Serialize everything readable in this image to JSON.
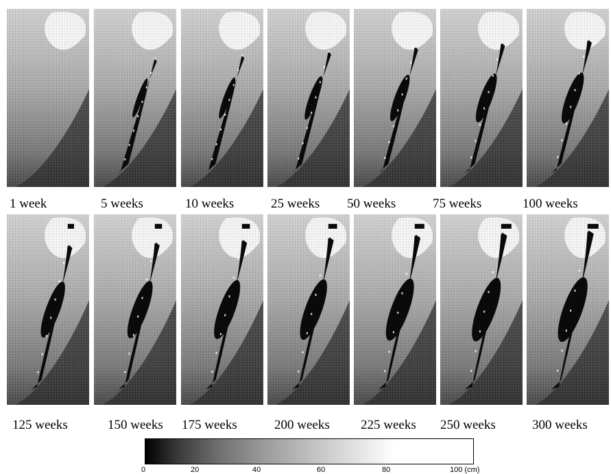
{
  "panels_row1": [
    {
      "label": "1 week",
      "stage": 0.0
    },
    {
      "label": "5 weeks",
      "stage": 0.12
    },
    {
      "label": "10 weeks",
      "stage": 0.2
    },
    {
      "label": "25 weeks",
      "stage": 0.3
    },
    {
      "label": "50 weeks",
      "stage": 0.42
    },
    {
      "label": "75 weeks",
      "stage": 0.52
    },
    {
      "label": "100 weeks",
      "stage": 0.6
    }
  ],
  "panels_row2": [
    {
      "label": "125 weeks",
      "stage": 0.66
    },
    {
      "label": "150 weeks",
      "stage": 0.72
    },
    {
      "label": "175 weeks",
      "stage": 0.78
    },
    {
      "label": "200 weeks",
      "stage": 0.84
    },
    {
      "label": "225 weeks",
      "stage": 0.9
    },
    {
      "label": "250 weeks",
      "stage": 0.95
    },
    {
      "label": "300 weeks",
      "stage": 1.0
    }
  ],
  "scale": {
    "ticks": [
      "0",
      "20",
      "40",
      "60",
      "80",
      "100 (cm)"
    ],
    "gradient_colors": [
      "#000000",
      "#ffffff"
    ]
  }
}
